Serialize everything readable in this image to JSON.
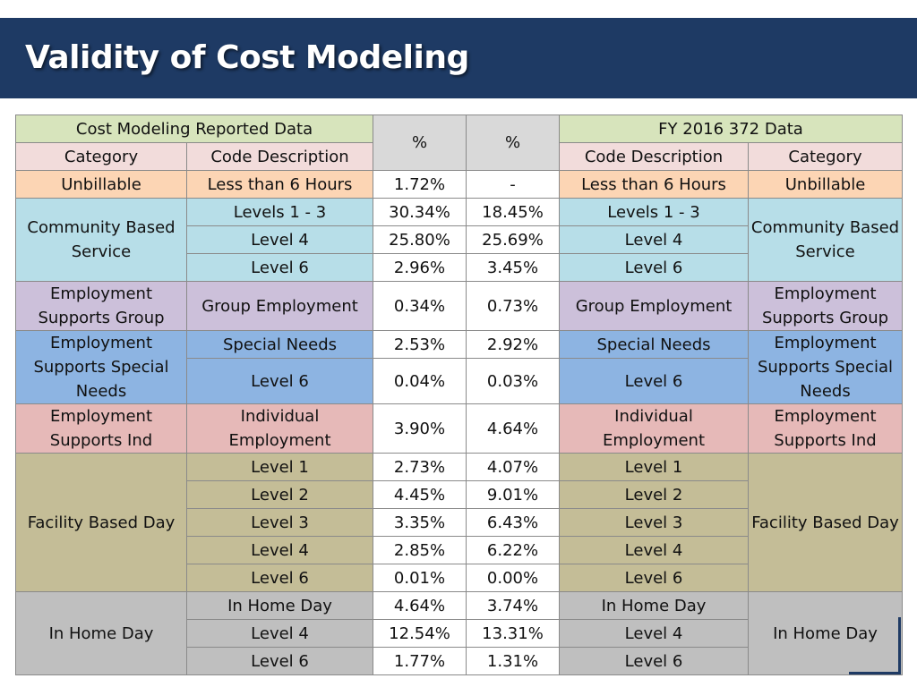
{
  "slide": {
    "title": "Validity of Cost Modeling"
  },
  "header": {
    "left_group": "Cost Modeling Reported Data",
    "pct_a": "%",
    "pct_b": "%",
    "right_group": "FY 2016 372 Data",
    "category": "Category",
    "code_description": "Code Description"
  },
  "groups": {
    "unbillable": "Unbillable",
    "cbs": "Community Based Service",
    "esg": "Employment Supports Group",
    "ess": "Employment Supports Special Needs",
    "esi": "Employment Supports Ind",
    "fbd": "Facility Based Day",
    "ihd": "In Home Day"
  },
  "rows": [
    {
      "code": "Less than 6 Hours",
      "pct_a": "1.72%",
      "pct_b": "-"
    },
    {
      "code": "Levels 1 - 3",
      "pct_a": "30.34%",
      "pct_b": "18.45%"
    },
    {
      "code": "Level 4",
      "pct_a": "25.80%",
      "pct_b": "25.69%"
    },
    {
      "code": "Level 6",
      "pct_a": "2.96%",
      "pct_b": "3.45%"
    },
    {
      "code": "Group Employment",
      "pct_a": "0.34%",
      "pct_b": "0.73%"
    },
    {
      "code": "Special Needs",
      "pct_a": "2.53%",
      "pct_b": "2.92%"
    },
    {
      "code": "Level 6",
      "pct_a": "0.04%",
      "pct_b": "0.03%"
    },
    {
      "code": "Individual Employment",
      "pct_a": "3.90%",
      "pct_b": "4.64%"
    },
    {
      "code": "Level 1",
      "pct_a": "2.73%",
      "pct_b": "4.07%"
    },
    {
      "code": "Level 2",
      "pct_a": "4.45%",
      "pct_b": "9.01%"
    },
    {
      "code": "Level 3",
      "pct_a": "3.35%",
      "pct_b": "6.43%"
    },
    {
      "code": "Level 4",
      "pct_a": "2.85%",
      "pct_b": "6.22%"
    },
    {
      "code": "Level 6",
      "pct_a": "0.01%",
      "pct_b": "0.00%"
    },
    {
      "code": "In Home Day",
      "pct_a": "4.64%",
      "pct_b": "3.74%"
    },
    {
      "code": "Level 4",
      "pct_a": "12.54%",
      "pct_b": "13.31%"
    },
    {
      "code": "Level 6",
      "pct_a": "1.77%",
      "pct_b": "1.31%"
    }
  ],
  "colors": {
    "title_bar": "#1e3a64",
    "header_group": "#d7e4bc",
    "header_label": "#f2dcdb",
    "header_pct": "#d9d9d9",
    "unbillable": "#fcd5b4",
    "cbs": "#b7dee8",
    "esg": "#ccc0da",
    "ess": "#8db4e2",
    "esi": "#e6b9b8",
    "fbd": "#c4bd97",
    "ihd": "#bfbfbf"
  }
}
